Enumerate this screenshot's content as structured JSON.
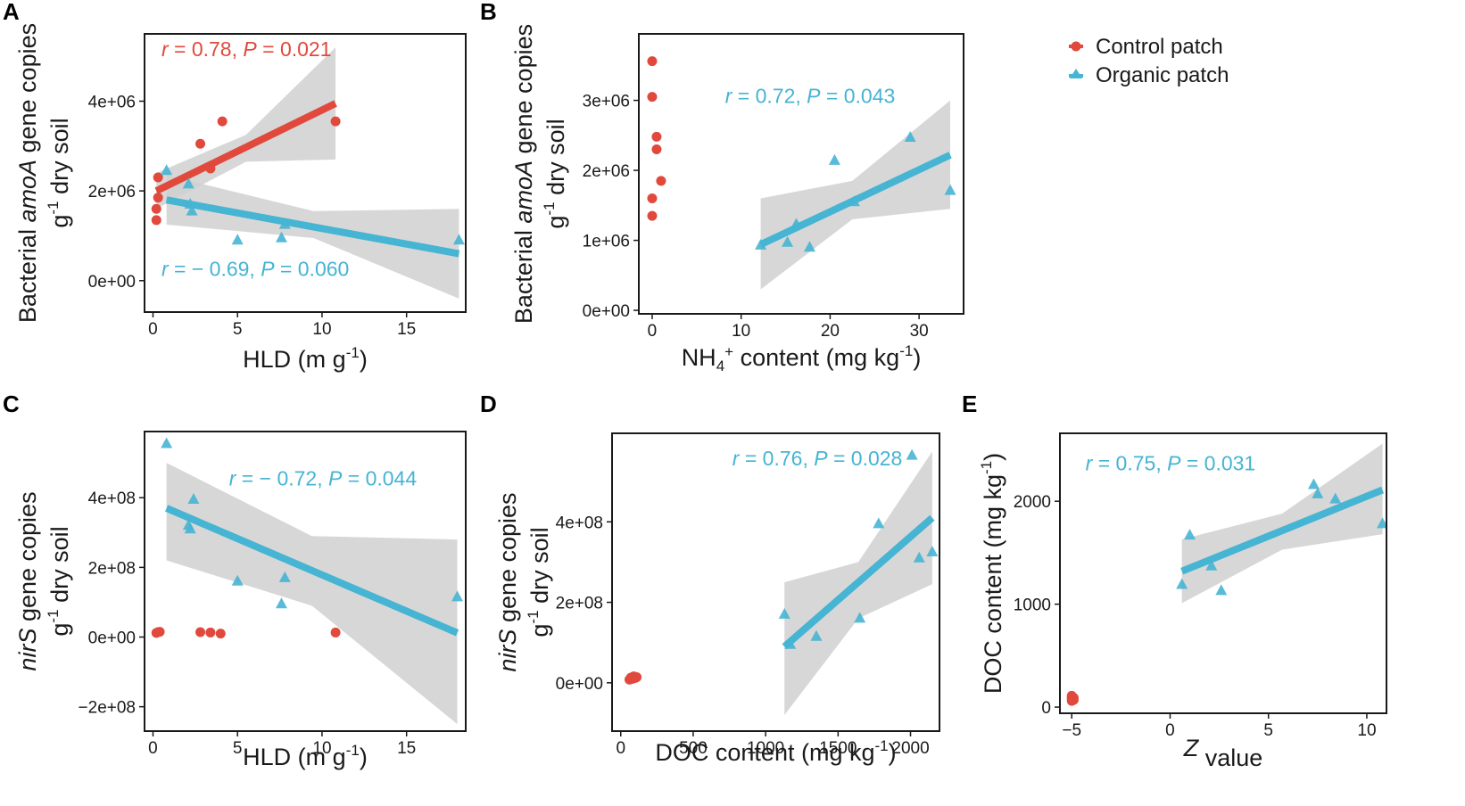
{
  "colors": {
    "control": "#e0493c",
    "organic": "#46b4d3",
    "ci_band": "#d0d0d0",
    "frame": "#1a1a1a"
  },
  "legend": {
    "items": [
      {
        "label": "Control patch",
        "series": "control",
        "shape": "circle"
      },
      {
        "label": "Organic patch",
        "series": "organic",
        "shape": "triangle"
      }
    ]
  },
  "chart_data": [
    {
      "panel": "A",
      "type": "scatter",
      "xlim": [
        -0.5,
        18.5
      ],
      "ylim": [
        -700000,
        5500000
      ],
      "xticks": [
        {
          "v": 0,
          "label": "0"
        },
        {
          "v": 5,
          "label": "5"
        },
        {
          "v": 10,
          "label": "10"
        },
        {
          "v": 15,
          "label": "15"
        }
      ],
      "yticks": [
        {
          "v": 0,
          "label": "0e+00"
        },
        {
          "v": 2000000,
          "label": "2e+06"
        },
        {
          "v": 4000000,
          "label": "4e+06"
        }
      ],
      "xlabel": {
        "text": "HLD (m g",
        "sup": "-1",
        "tail": ")"
      },
      "ylabel": [
        {
          "parts": [
            {
              "text": "Bacterial "
            },
            {
              "text": "amoA",
              "italic": true
            },
            {
              "text": " gene copies"
            }
          ]
        },
        {
          "parts": [
            {
              "text": "g"
            },
            {
              "text": "-1",
              "sup": true
            },
            {
              "text": " dry soil"
            }
          ]
        }
      ],
      "series": [
        {
          "name": "Control patch",
          "color": "control",
          "shape": "circle",
          "points": [
            [
              0.2,
              1350000
            ],
            [
              0.2,
              1600000
            ],
            [
              0.3,
              1850000
            ],
            [
              0.3,
              2300000
            ],
            [
              2.8,
              3050000
            ],
            [
              3.4,
              2500000
            ],
            [
              4.1,
              3550000
            ],
            [
              10.8,
              3550000
            ]
          ],
          "fit": {
            "x": [
              0.2,
              10.8
            ],
            "y": [
              2000000,
              3950000
            ]
          },
          "ci": {
            "x": [
              0.2,
              5.5,
              10.8
            ],
            "upper": [
              2400000,
              3250000,
              5200000
            ],
            "lower": [
              1600000,
              2650000,
              2700000
            ]
          },
          "stat": {
            "r": "0.78",
            "P": "0.021",
            "label_at": [
              0.5,
              5000000
            ]
          }
        },
        {
          "name": "Organic patch",
          "color": "organic",
          "shape": "triangle",
          "points": [
            [
              0.8,
              2450000
            ],
            [
              2.1,
              2150000
            ],
            [
              2.2,
              1700000
            ],
            [
              2.3,
              1550000
            ],
            [
              5.0,
              900000
            ],
            [
              7.6,
              950000
            ],
            [
              7.8,
              1250000
            ],
            [
              18.1,
              900000
            ]
          ],
          "fit": {
            "x": [
              0.8,
              18.1
            ],
            "y": [
              1800000,
              600000
            ]
          },
          "ci": {
            "x": [
              0.8,
              9.5,
              18.1
            ],
            "upper": [
              2350000,
              1550000,
              1600000
            ],
            "lower": [
              1250000,
              950000,
              -400000
            ]
          },
          "stat": {
            "r": "− 0.69",
            "P": "0.060",
            "label_at": [
              0.5,
              100000
            ]
          }
        }
      ]
    },
    {
      "panel": "B",
      "type": "scatter",
      "xlim": [
        -1.5,
        35
      ],
      "ylim": [
        -50000,
        3950000
      ],
      "xticks": [
        {
          "v": 0,
          "label": "0"
        },
        {
          "v": 10,
          "label": "10"
        },
        {
          "v": 20,
          "label": "20"
        },
        {
          "v": 30,
          "label": "30"
        }
      ],
      "yticks": [
        {
          "v": 0,
          "label": "0e+00"
        },
        {
          "v": 1000000,
          "label": "1e+06"
        },
        {
          "v": 2000000,
          "label": "2e+06"
        },
        {
          "v": 3000000,
          "label": "3e+06"
        }
      ],
      "xlabel": {
        "text": "NH",
        "sub": "4",
        "sup": "+",
        "tail": " content (mg kg",
        "sup2": "-1",
        "tail2": ")"
      },
      "ylabel": [
        {
          "parts": [
            {
              "text": "Bacterial "
            },
            {
              "text": "amoA",
              "italic": true
            },
            {
              "text": " gene copies"
            }
          ]
        },
        {
          "parts": [
            {
              "text": "g"
            },
            {
              "text": "-1",
              "sup": true
            },
            {
              "text": " dry soil"
            }
          ]
        }
      ],
      "series": [
        {
          "name": "Control patch",
          "color": "control",
          "shape": "circle",
          "points": [
            [
              0.0,
              3560000
            ],
            [
              0.0,
              3050000
            ],
            [
              0.5,
              2480000
            ],
            [
              0.5,
              2300000
            ],
            [
              1.0,
              1850000
            ],
            [
              0.0,
              1600000
            ],
            [
              0.0,
              1350000
            ]
          ],
          "stat": null
        },
        {
          "name": "Organic patch",
          "color": "organic",
          "shape": "triangle",
          "points": [
            [
              12.2,
              930000
            ],
            [
              15.2,
              970000
            ],
            [
              16.2,
              1230000
            ],
            [
              17.7,
              900000
            ],
            [
              20.5,
              2140000
            ],
            [
              22.7,
              1550000
            ],
            [
              29.0,
              2470000
            ],
            [
              33.5,
              1710000
            ]
          ],
          "fit": {
            "x": [
              12.2,
              33.5
            ],
            "y": [
              940000,
              2220000
            ]
          },
          "ci": {
            "x": [
              12.2,
              22.5,
              33.5
            ],
            "upper": [
              1600000,
              1850000,
              3000000
            ],
            "lower": [
              300000,
              1300000,
              1450000
            ]
          },
          "stat": {
            "r": "0.72",
            "P": "0.043",
            "label_at": [
              8.2,
              2960000
            ]
          }
        }
      ]
    },
    {
      "panel": "C",
      "type": "scatter",
      "xlim": [
        -0.5,
        18.5
      ],
      "ylim": [
        -270000000,
        590000000
      ],
      "xticks": [
        {
          "v": 0,
          "label": "0"
        },
        {
          "v": 5,
          "label": "5"
        },
        {
          "v": 10,
          "label": "10"
        },
        {
          "v": 15,
          "label": "15"
        }
      ],
      "yticks": [
        {
          "v": -200000000,
          "label": "−2e+08"
        },
        {
          "v": 0,
          "label": "0e+00"
        },
        {
          "v": 200000000,
          "label": "2e+08"
        },
        {
          "v": 400000000,
          "label": "4e+08"
        }
      ],
      "xlabel": {
        "text": "HLD (m g",
        "sup": "-1",
        "tail": ")"
      },
      "ylabel": [
        {
          "parts": [
            {
              "text": "nirS",
              "italic": true
            },
            {
              "text": " gene copies"
            }
          ]
        },
        {
          "parts": [
            {
              "text": "g"
            },
            {
              "text": "-1",
              "sup": true
            },
            {
              "text": " dry soil"
            }
          ]
        }
      ],
      "series": [
        {
          "name": "Control patch",
          "color": "control",
          "shape": "circle",
          "points": [
            [
              0.2,
              12000000
            ],
            [
              0.3,
              14000000
            ],
            [
              0.4,
              15000000
            ],
            [
              2.8,
              14000000
            ],
            [
              3.4,
              13000000
            ],
            [
              4.0,
              10000000
            ],
            [
              10.8,
              13000000
            ]
          ],
          "stat": null
        },
        {
          "name": "Organic patch",
          "color": "organic",
          "shape": "triangle",
          "points": [
            [
              0.8,
              555000000
            ],
            [
              2.1,
              320000000
            ],
            [
              2.2,
              310000000
            ],
            [
              2.4,
              395000000
            ],
            [
              5.0,
              160000000
            ],
            [
              7.6,
              95000000
            ],
            [
              7.8,
              170000000
            ],
            [
              18.0,
              115000000
            ]
          ],
          "fit": {
            "x": [
              0.8,
              18.0
            ],
            "y": [
              370000000,
              12000000
            ]
          },
          "ci": {
            "x": [
              0.8,
              9.4,
              18.0
            ],
            "upper": [
              500000000,
              290000000,
              280000000
            ],
            "lower": [
              220000000,
              90000000,
              -250000000
            ]
          },
          "stat": {
            "r": "− 0.72",
            "P": "0.044",
            "label_at": [
              4.5,
              435000000
            ]
          }
        }
      ]
    },
    {
      "panel": "D",
      "type": "scatter",
      "xlim": [
        -60,
        2200
      ],
      "ylim": [
        -120000000,
        620000000
      ],
      "xticks": [
        {
          "v": 0,
          "label": "0"
        },
        {
          "v": 500,
          "label": "500"
        },
        {
          "v": 1000,
          "label": "1000"
        },
        {
          "v": 1500,
          "label": "1500"
        },
        {
          "v": 2000,
          "label": "2000"
        }
      ],
      "yticks": [
        {
          "v": 0,
          "label": "0e+00"
        },
        {
          "v": 200000000,
          "label": "2e+08"
        },
        {
          "v": 400000000,
          "label": "4e+08"
        }
      ],
      "xlabel": {
        "text": "DOC content (mg kg",
        "sup": "-1",
        "tail": ")"
      },
      "ylabel": [
        {
          "parts": [
            {
              "text": "nirS",
              "italic": true
            },
            {
              "text": " gene copies"
            }
          ]
        },
        {
          "parts": [
            {
              "text": "g"
            },
            {
              "text": "-1",
              "sup": true
            },
            {
              "text": " dry soil"
            }
          ]
        }
      ],
      "series": [
        {
          "name": "Control patch",
          "color": "control",
          "shape": "circle",
          "points": [
            [
              60,
              8000000
            ],
            [
              70,
              13000000
            ],
            [
              80,
              10000000
            ],
            [
              90,
              16000000
            ],
            [
              100,
              12000000
            ],
            [
              110,
              14000000
            ]
          ],
          "stat": null
        },
        {
          "name": "Organic patch",
          "color": "organic",
          "shape": "triangle",
          "points": [
            [
              1130,
              170000000
            ],
            [
              1170,
              95000000
            ],
            [
              1350,
              115000000
            ],
            [
              1650,
              160000000
            ],
            [
              1780,
              395000000
            ],
            [
              2010,
              565000000
            ],
            [
              2060,
              310000000
            ],
            [
              2150,
              325000000
            ]
          ],
          "fit": {
            "x": [
              1130,
              2150
            ],
            "y": [
              90000000,
              410000000
            ]
          },
          "ci": {
            "x": [
              1130,
              1640,
              2150
            ],
            "upper": [
              250000000,
              300000000,
              575000000
            ],
            "lower": [
              -80000000,
              160000000,
              245000000
            ]
          },
          "stat": {
            "r": "0.76",
            "P": "0.028",
            "label_at": [
              770,
              540000000
            ]
          }
        }
      ]
    },
    {
      "panel": "E",
      "type": "scatter",
      "xlim": [
        -5.6,
        11.0
      ],
      "ylim": [
        -60,
        2660
      ],
      "xticks": [
        {
          "v": -5,
          "label": "−5"
        },
        {
          "v": 0,
          "label": "0"
        },
        {
          "v": 5,
          "label": "5"
        },
        {
          "v": 10,
          "label": "10"
        }
      ],
      "yticks": [
        {
          "v": 0,
          "label": "0"
        },
        {
          "v": 1000,
          "label": "1000"
        },
        {
          "v": 2000,
          "label": "2000"
        }
      ],
      "xlabel": {
        "text": "Z",
        "italic": true,
        "tail": " value"
      },
      "ylabel": [
        {
          "parts": [
            {
              "text": "DOC content (mg kg"
            },
            {
              "text": "-1",
              "sup": true
            },
            {
              "text": ")"
            }
          ]
        }
      ],
      "series": [
        {
          "name": "Control patch",
          "color": "control",
          "shape": "circle",
          "points": [
            [
              -5.0,
              60
            ],
            [
              -5.0,
              80
            ],
            [
              -5.0,
              95
            ],
            [
              -5.0,
              110
            ],
            [
              -4.9,
              70
            ],
            [
              -4.9,
              90
            ]
          ],
          "stat": null
        },
        {
          "name": "Organic patch",
          "color": "organic",
          "shape": "triangle",
          "points": [
            [
              0.6,
              1190
            ],
            [
              1.0,
              1670
            ],
            [
              2.1,
              1370
            ],
            [
              2.6,
              1130
            ],
            [
              7.3,
              2160
            ],
            [
              7.5,
              2070
            ],
            [
              8.4,
              2020
            ],
            [
              10.8,
              1780
            ]
          ],
          "fit": {
            "x": [
              0.6,
              10.8
            ],
            "y": [
              1320,
              2110
            ]
          },
          "ci": {
            "x": [
              0.6,
              5.7,
              10.8
            ],
            "upper": [
              1630,
              1880,
              2560
            ],
            "lower": [
              1010,
              1530,
              1680
            ]
          },
          "stat": {
            "r": "0.75",
            "P": "0.031",
            "label_at": [
              -4.3,
              2300
            ]
          }
        }
      ]
    }
  ]
}
